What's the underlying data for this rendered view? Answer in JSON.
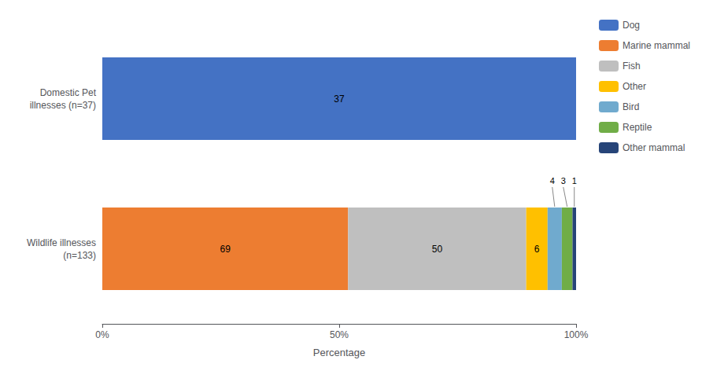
{
  "chart_data": {
    "type": "bar",
    "orientation": "horizontal",
    "stacked": true,
    "categories": [
      "Wildlife illnesses\n(n=133)",
      "Domestic Pet\nillnesses (n=37)"
    ],
    "series": [
      {
        "name": "Dog",
        "color": "#4472C4",
        "values": [
          0,
          1
        ],
        "counts": [
          null,
          37
        ]
      },
      {
        "name": "Marine mammal",
        "color": "#ED7D31",
        "values": [
          0.518796992481203,
          0
        ],
        "counts": [
          69,
          null
        ]
      },
      {
        "name": "Fish",
        "color": "#BFBFBF",
        "values": [
          0.37593984962406013,
          0
        ],
        "counts": [
          50,
          null
        ]
      },
      {
        "name": "Other",
        "color": "#FFC000",
        "values": [
          0.045112781954887216,
          0
        ],
        "counts": [
          6,
          null
        ]
      },
      {
        "name": "Bird",
        "color": "#70AACE",
        "values": [
          0.03007518796992481,
          0
        ],
        "callouts": [
          4,
          null
        ]
      },
      {
        "name": "Reptile",
        "color": "#70AD47",
        "values": [
          0.022556390977443608,
          0
        ],
        "callouts": [
          3,
          null
        ]
      },
      {
        "name": "Other mammal",
        "color": "#264478",
        "values": [
          0.007518796992481203,
          0
        ],
        "callouts": [
          1,
          null
        ]
      }
    ],
    "xlabel": "Percentage",
    "xlim": [
      0,
      1
    ],
    "xticks": [
      {
        "value": 0,
        "label": "0%"
      },
      {
        "value": 0.5,
        "label": "50%"
      },
      {
        "value": 1,
        "label": "100%"
      }
    ],
    "grid": false,
    "legend": "right"
  }
}
